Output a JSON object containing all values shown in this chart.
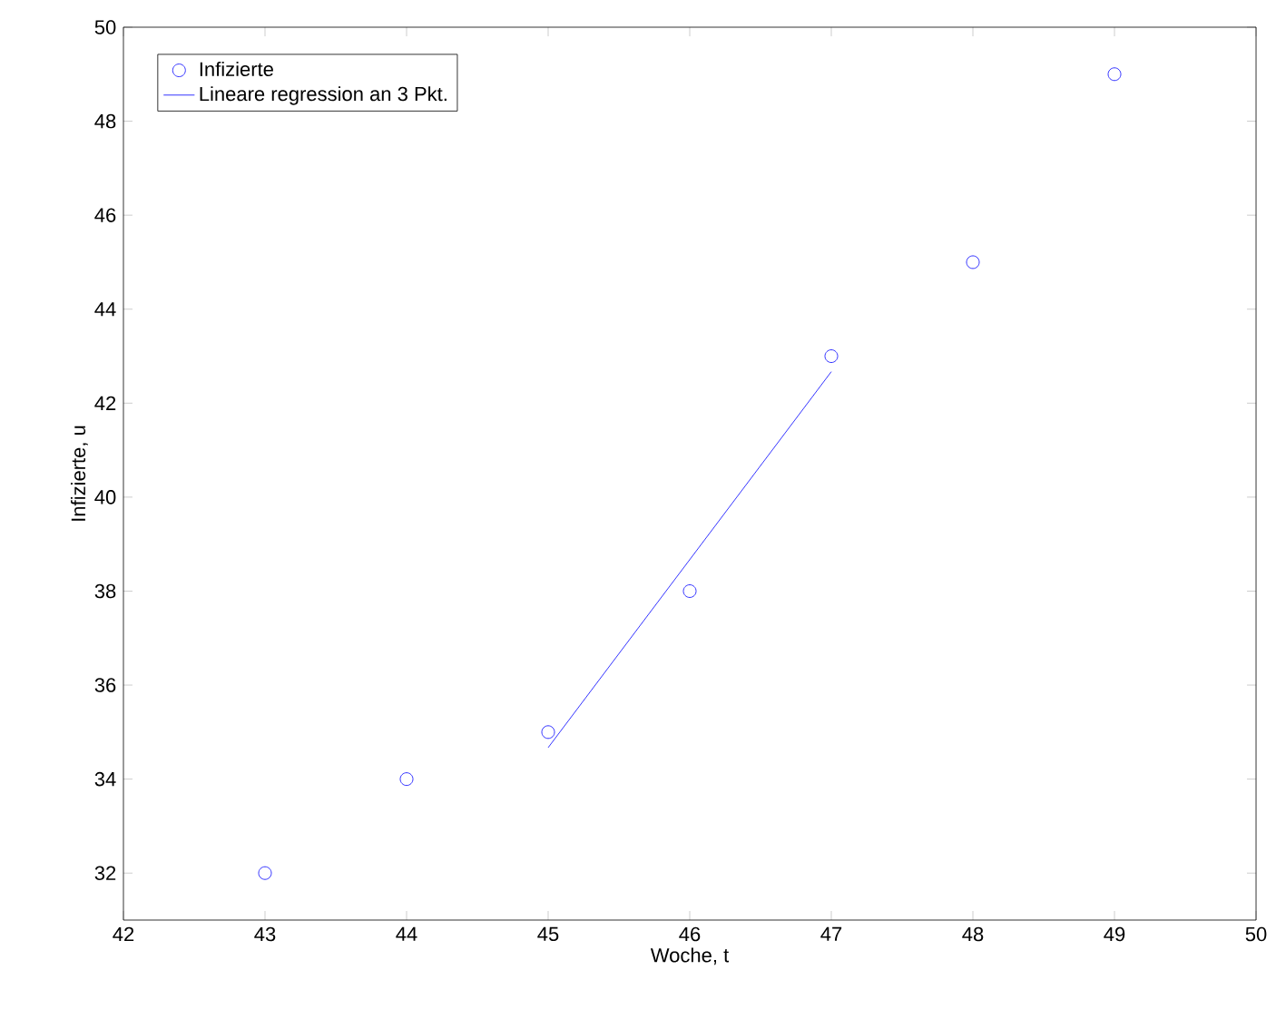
{
  "chart_data": {
    "type": "scatter",
    "xlabel": "Woche, t",
    "ylabel": "Infizierte, u",
    "x": [
      43,
      44,
      45,
      46,
      47,
      48,
      49
    ],
    "series": [
      {
        "name": "Infizierte",
        "color": "#0000ff",
        "marker": "circle",
        "values": [
          32,
          34,
          35,
          38,
          43,
          45,
          49
        ]
      },
      {
        "name": "Lineare regression an 3 Pkt.",
        "type": "line",
        "color": "#0000ff",
        "marker": "none",
        "line_style": "solid",
        "x": [
          45,
          47
        ],
        "values": [
          34.67,
          42.67
        ]
      }
    ],
    "xlim": [
      42,
      50
    ],
    "xticks": [
      42,
      43,
      44,
      45,
      46,
      47,
      48,
      49,
      50
    ],
    "ylim": [
      31,
      50
    ],
    "yticks": [
      32,
      34,
      36,
      38,
      40,
      42,
      44,
      46,
      48,
      50
    ],
    "grid": false,
    "legend": "top left"
  }
}
